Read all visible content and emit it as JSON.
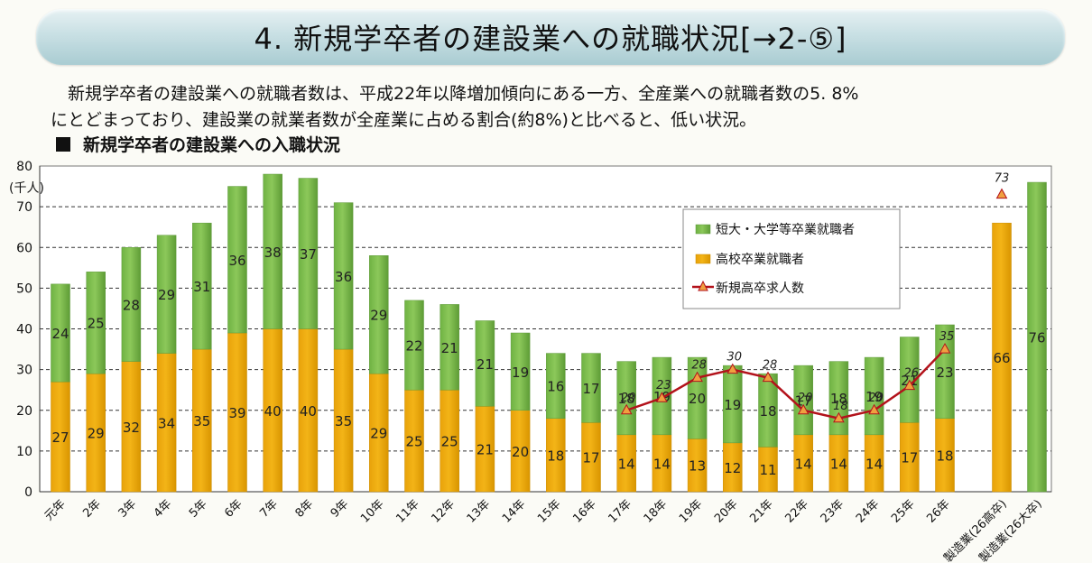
{
  "header": {
    "title": "4. 新規学卒者の建設業への就職状況[→2-⑤]"
  },
  "description": {
    "line1": "新規学卒者の建設業への就職者数は、平成22年以降増加傾向にある一方、全産業への就職者数の5. 8%",
    "line2": "にとどまっており、建設業の就業者数が全産業に占める割合(約8%)と比べると、低い状況。"
  },
  "subheading": "新規学卒者の建設業への入職状況",
  "colors": {
    "green": "#8cc85a",
    "green_dark": "#5f9a3c",
    "orange": "#f3b417",
    "orange_dark": "#c98c00",
    "line": "#b3121b",
    "marker": "#f0a040"
  },
  "chart_data": {
    "type": "bar",
    "stacked": true,
    "ylabel": "(千人)",
    "ylim": [
      0,
      80
    ],
    "yticks": [
      0,
      10,
      20,
      30,
      40,
      50,
      60,
      70,
      80
    ],
    "categories": [
      "元年",
      "2年",
      "3年",
      "4年",
      "5年",
      "6年",
      "7年",
      "8年",
      "9年",
      "10年",
      "11年",
      "12年",
      "13年",
      "14年",
      "15年",
      "16年",
      "17年",
      "18年",
      "19年",
      "20年",
      "21年",
      "22年",
      "23年",
      "24年",
      "25年",
      "26年"
    ],
    "series": [
      {
        "name": "高校卒業就職者",
        "values": [
          27,
          29,
          32,
          34,
          35,
          39,
          40,
          40,
          35,
          29,
          25,
          25,
          21,
          20,
          18,
          17,
          14,
          14,
          13,
          12,
          11,
          14,
          14,
          14,
          17,
          18
        ]
      },
      {
        "name": "短大・大学等卒業就職者",
        "values": [
          24,
          25,
          28,
          29,
          31,
          36,
          38,
          37,
          36,
          29,
          22,
          21,
          21,
          19,
          16,
          17,
          18,
          19,
          20,
          19,
          18,
          17,
          18,
          19,
          21,
          23
        ]
      }
    ],
    "line_series": {
      "name": "新規高卒求人数",
      "start_index": 16,
      "values": [
        20,
        23,
        28,
        30,
        28,
        20,
        18,
        20,
        26,
        35
      ]
    },
    "extra_bars": [
      {
        "label": "製造業(26高卒)",
        "value": 66,
        "series": "高校卒業就職者"
      },
      {
        "label": "製造業(26大卒)",
        "value": 76,
        "series": "短大・大学等卒業就職者"
      }
    ],
    "extra_point": {
      "label": "製造業(26高卒)",
      "value": 73,
      "series": "新規高卒求人数"
    },
    "legend": [
      "短大・大学等卒業就職者",
      "高校卒業就職者",
      "新規高卒求人数"
    ],
    "legend_position": "center-right"
  }
}
